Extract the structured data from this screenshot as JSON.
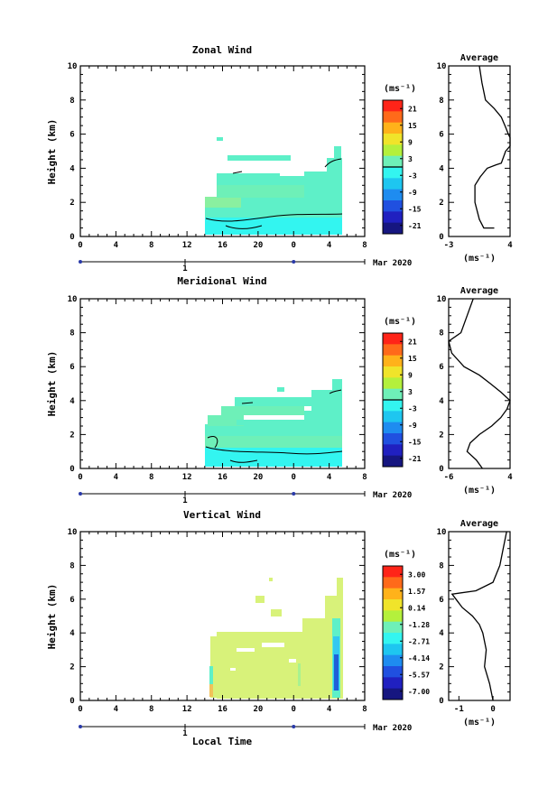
{
  "figure": {
    "date_label": "Mar 2020",
    "day_label": "1",
    "xlabel": "Local Time",
    "ylabel": "Height (km)",
    "profile_title": "Average",
    "unit": "(ms⁻¹)"
  },
  "chart_data": [
    {
      "type": "heatmap",
      "title": "Zonal Wind",
      "xlabel": "Local Time",
      "ylabel": "Height (km)",
      "x_ticks": [
        "0",
        "4",
        "8",
        "12",
        "16",
        "20",
        "0",
        "4",
        "8"
      ],
      "y_ticks": [
        "0",
        "2",
        "4",
        "6",
        "8",
        "10"
      ],
      "xlim": [
        0,
        32
      ],
      "ylim": [
        0,
        10
      ],
      "colorbar": {
        "unit": "(ms⁻¹)",
        "labels": [
          "21",
          "15",
          "9",
          "3",
          "-3",
          "-9",
          "-15",
          "-21"
        ],
        "range": [
          -24,
          24
        ]
      },
      "data_extent": {
        "x": [
          14,
          29.5
        ],
        "y": [
          0.1,
          5.5
        ]
      },
      "profile": {
        "title": "Average",
        "xlabel": "(ms⁻¹)",
        "xticks": [
          "-3",
          "4"
        ],
        "xlim": [
          -3,
          4
        ],
        "ylim": [
          0,
          10
        ],
        "values": [
          [
            2.2,
            0.5
          ],
          [
            1.6,
            0.5
          ],
          [
            1.0,
            0.5
          ],
          [
            0.5,
            1.0
          ],
          [
            0.0,
            2.0
          ],
          [
            0.0,
            3.0
          ],
          [
            0.6,
            3.5
          ],
          [
            1.4,
            4.0
          ],
          [
            2.4,
            4.2
          ],
          [
            3.0,
            4.3
          ],
          [
            3.5,
            5.0
          ],
          [
            4.0,
            5.3
          ],
          [
            4.0,
            5.8
          ],
          [
            3.8,
            6.0
          ],
          [
            3.5,
            6.4
          ],
          [
            3.0,
            7.0
          ],
          [
            2.2,
            7.5
          ],
          [
            1.2,
            8.0
          ],
          [
            0.8,
            9.0
          ],
          [
            0.5,
            10.0
          ]
        ]
      }
    },
    {
      "type": "heatmap",
      "title": "Meridional Wind",
      "xlabel": "Local Time",
      "ylabel": "Height (km)",
      "x_ticks": [
        "0",
        "4",
        "8",
        "12",
        "16",
        "20",
        "0",
        "4",
        "8"
      ],
      "y_ticks": [
        "0",
        "2",
        "4",
        "6",
        "8",
        "10"
      ],
      "xlim": [
        0,
        32
      ],
      "ylim": [
        0,
        10
      ],
      "colorbar": {
        "unit": "(ms⁻¹)",
        "labels": [
          "21",
          "15",
          "9",
          "3",
          "-3",
          "-9",
          "-15",
          "-21"
        ],
        "range": [
          -24,
          24
        ]
      },
      "data_extent": {
        "x": [
          14,
          29.5
        ],
        "y": [
          0.1,
          5.5
        ]
      },
      "profile": {
        "title": "Average",
        "xlabel": "(ms⁻¹)",
        "xticks": [
          "-6",
          "4"
        ],
        "xlim": [
          -6,
          4
        ],
        "ylim": [
          0,
          10
        ],
        "values": [
          [
            -0.5,
            0.0
          ],
          [
            -1.5,
            0.5
          ],
          [
            -3.0,
            1.0
          ],
          [
            -2.5,
            1.5
          ],
          [
            -1.0,
            2.0
          ],
          [
            1.0,
            2.5
          ],
          [
            2.5,
            3.0
          ],
          [
            3.5,
            3.5
          ],
          [
            4.0,
            4.0
          ],
          [
            2.5,
            4.5
          ],
          [
            0.8,
            5.0
          ],
          [
            -1.0,
            5.5
          ],
          [
            -3.5,
            6.0
          ],
          [
            -5.5,
            6.8
          ],
          [
            -6.0,
            7.5
          ],
          [
            -4.0,
            8.0
          ],
          [
            -3.0,
            9.0
          ],
          [
            -2.0,
            10.0
          ]
        ]
      }
    },
    {
      "type": "heatmap",
      "title": "Vertical Wind",
      "xlabel": "Local Time",
      "ylabel": "Height (km)",
      "x_ticks": [
        "0",
        "4",
        "8",
        "12",
        "16",
        "20",
        "0",
        "4",
        "8"
      ],
      "y_ticks": [
        "0",
        "2",
        "4",
        "6",
        "8",
        "10"
      ],
      "xlim": [
        0,
        32
      ],
      "ylim": [
        0,
        10
      ],
      "colorbar": {
        "unit": "(ms⁻¹)",
        "labels": [
          "3.00",
          "1.57",
          "0.14",
          "-1.28",
          "-2.71",
          "-4.14",
          "-5.57",
          "-7.00"
        ],
        "range": [
          -7.0,
          3.0
        ]
      },
      "data_extent": {
        "x": [
          14.5,
          29.5
        ],
        "y": [
          0.1,
          7.2
        ]
      },
      "profile": {
        "title": "Average",
        "xlabel": "(ms⁻¹)",
        "xticks": [
          "-1",
          "0"
        ],
        "xlim": [
          -1.3,
          0.5
        ],
        "ylim": [
          0,
          10
        ],
        "values": [
          [
            0.0,
            0.0
          ],
          [
            -0.1,
            1.0
          ],
          [
            -0.25,
            2.0
          ],
          [
            -0.2,
            3.0
          ],
          [
            -0.3,
            4.0
          ],
          [
            -0.4,
            4.5
          ],
          [
            -0.6,
            5.0
          ],
          [
            -0.9,
            5.5
          ],
          [
            -1.2,
            6.3
          ],
          [
            -0.5,
            6.5
          ],
          [
            0.0,
            7.0
          ],
          [
            0.2,
            8.0
          ],
          [
            0.3,
            9.0
          ],
          [
            0.4,
            10.0
          ]
        ]
      }
    }
  ]
}
